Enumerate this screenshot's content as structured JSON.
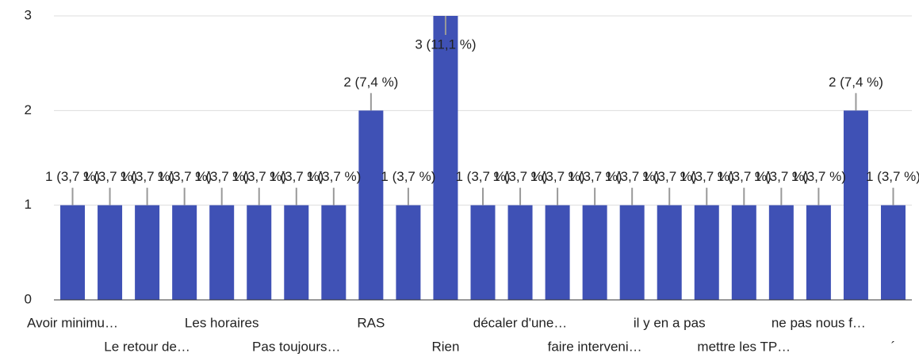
{
  "chart_data": {
    "type": "bar",
    "categories": [
      "Avoir minimu…",
      null,
      "Le retour de…",
      null,
      "Les horaires",
      null,
      "Pas toujours…",
      null,
      "RAS",
      null,
      "Rien",
      null,
      "décaler d'une…",
      null,
      "faire interveni…",
      null,
      "il y en a pas",
      null,
      "mettre les TP…",
      null,
      "ne pas nous f…",
      null,
      "´"
    ],
    "values": [
      1,
      1,
      1,
      1,
      1,
      1,
      1,
      1,
      2,
      1,
      3,
      1,
      1,
      1,
      1,
      1,
      1,
      1,
      1,
      1,
      1,
      2,
      1
    ],
    "value_labels": [
      "1 (3,7 %)",
      "1 (3,7 %)",
      "1 (3,7 %)",
      "1 (3,7 %)",
      "1 (3,7 %)",
      "1 (3,7 %)",
      "1 (3,7 %)",
      "1 (3,7 %)",
      "2 (7,4 %)",
      "1 (3,7 %)",
      "3 (11,1 %)",
      "1 (3,7 %)",
      "1 (3,7 %)",
      "1 (3,7 %)",
      "1 (3,7 %)",
      "1 (3,7 %)",
      "1 (3,7 %)",
      "1 (3,7 %)",
      "1 (3,7 %)",
      "1 (3,7 %)",
      "1 (3,7 %)",
      "2 (7,4 %)",
      "1 (3,7 %)"
    ],
    "color": "#3f51b5",
    "ylim": [
      0,
      3
    ],
    "yticks": [
      0,
      1,
      2,
      3
    ],
    "grid": true
  }
}
